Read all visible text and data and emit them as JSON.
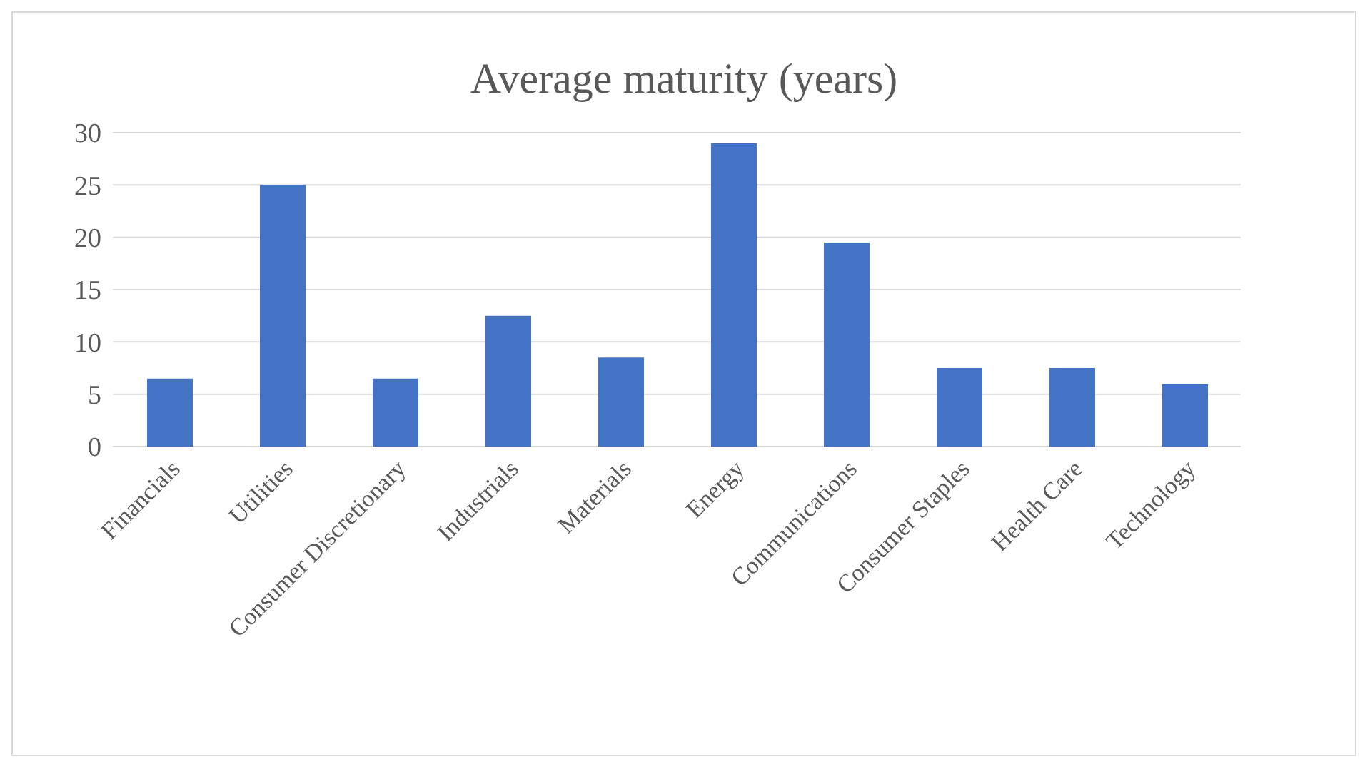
{
  "chart_data": {
    "type": "bar",
    "title": "Average maturity (years)",
    "categories": [
      "Financials",
      "Utilities",
      "Consumer Discretionary",
      "Industrials",
      "Materials",
      "Energy",
      "Communications",
      "Consumer Staples",
      "Health Care",
      "Technology"
    ],
    "values": [
      6.5,
      25,
      6.5,
      12.5,
      8.5,
      29,
      19.5,
      7.5,
      7.5,
      6
    ],
    "color": "#4472c4",
    "ylim": [
      0,
      30
    ],
    "yticks": [
      0,
      5,
      10,
      15,
      20,
      25,
      30
    ],
    "grid": "y"
  }
}
